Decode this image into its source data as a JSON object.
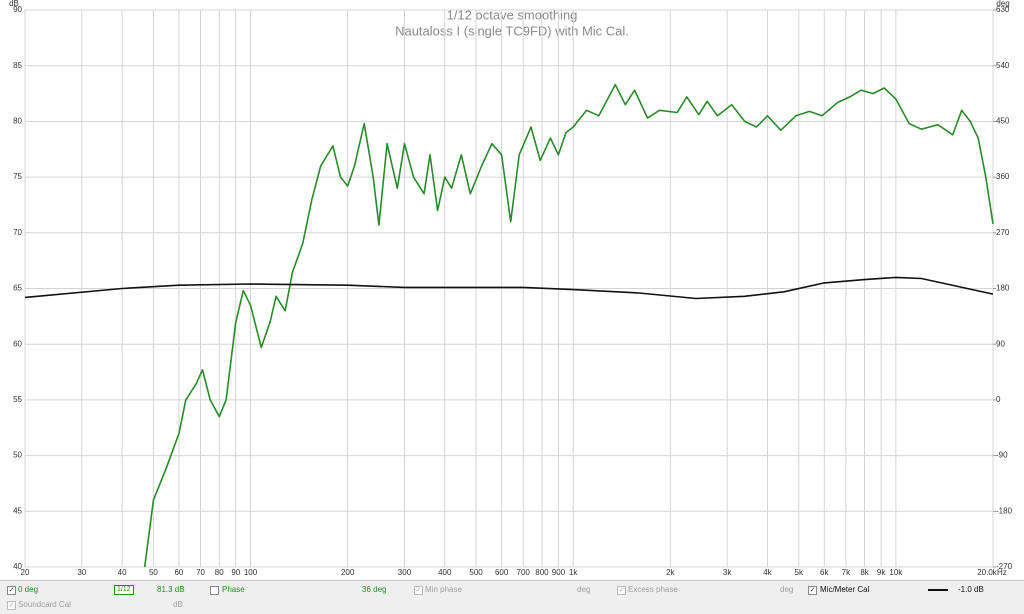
{
  "chart_data": {
    "type": "line",
    "title": "1/12 octave smoothing",
    "subtitle": "Nautaloss I (single TC9FD) with Mic Cal.",
    "ylabel": "dB",
    "y2label": "deg",
    "xunit": "Hz",
    "log_x": true,
    "grid": true,
    "xlim": [
      20,
      20000
    ],
    "ylim": [
      40,
      90
    ],
    "y2lim": [
      -270,
      630
    ],
    "xticks": [
      20,
      30,
      40,
      50,
      60,
      70,
      80,
      90,
      100,
      200,
      300,
      400,
      500,
      600,
      700,
      800,
      900,
      {
        "value": 1000,
        "label": "1k"
      },
      {
        "value": 2000,
        "label": "2k"
      },
      {
        "value": 3000,
        "label": "3k"
      },
      {
        "value": 4000,
        "label": "4k"
      },
      {
        "value": 5000,
        "label": "5k"
      },
      {
        "value": 6000,
        "label": "6k"
      },
      {
        "value": 7000,
        "label": "7k"
      },
      {
        "value": 8000,
        "label": "8k"
      },
      {
        "value": 9000,
        "label": "9k"
      },
      {
        "value": 10000,
        "label": "10k"
      },
      {
        "value": 20000,
        "label": "20.0k"
      }
    ],
    "yticks": [
      40,
      45,
      50,
      55,
      60,
      65,
      70,
      75,
      80,
      85,
      90
    ],
    "y2ticks": [
      -270,
      -180,
      -90,
      0,
      90,
      180,
      270,
      360,
      450,
      540,
      630
    ],
    "series": [
      {
        "name": "0 deg",
        "color": "#2a8a2a",
        "x": [
          47,
          50,
          55,
          60,
          63,
          68,
          71,
          75,
          80,
          84,
          90,
          95,
          100,
          108,
          115,
          120,
          128,
          135,
          145,
          155,
          165,
          180,
          190,
          200,
          210,
          225,
          240,
          250,
          265,
          285,
          300,
          320,
          345,
          360,
          380,
          400,
          420,
          450,
          480,
          520,
          560,
          600,
          640,
          680,
          740,
          790,
          850,
          900,
          950,
          1000,
          1100,
          1200,
          1350,
          1450,
          1550,
          1700,
          1850,
          2100,
          2250,
          2450,
          2600,
          2800,
          3100,
          3400,
          3700,
          4000,
          4400,
          4900,
          5400,
          5900,
          6600,
          7200,
          7800,
          8500,
          9200,
          10000,
          11000,
          12000,
          13500,
          15000,
          16000,
          17000,
          18000,
          19000,
          20000
        ],
        "values": [
          40,
          46,
          49,
          52,
          55,
          56.5,
          57.7,
          55,
          53.5,
          55,
          62,
          64.8,
          63.5,
          59.7,
          62,
          64.3,
          63,
          66.5,
          69,
          73,
          76,
          77.8,
          75,
          74.2,
          76,
          79.8,
          75,
          70.7,
          78,
          74,
          78,
          75,
          73.5,
          77,
          72,
          75,
          74,
          77,
          73.5,
          76,
          78,
          77,
          71,
          77,
          79.5,
          76.5,
          78.5,
          77,
          79,
          79.5,
          81,
          80.5,
          83.3,
          81.5,
          82.8,
          80.3,
          81,
          80.8,
          82.2,
          80.6,
          81.8,
          80.5,
          81.5,
          80,
          79.5,
          80.5,
          79.2,
          80.5,
          80.9,
          80.5,
          81.7,
          82.2,
          82.8,
          82.5,
          83,
          82,
          79.8,
          79.3,
          79.7,
          78.8,
          81,
          80,
          78.5,
          75,
          70.8
        ]
      },
      {
        "name": "Mic/Meter Cal",
        "color": "#111111",
        "x": [
          20,
          40,
          60,
          100,
          200,
          300,
          700,
          1000,
          1600,
          2400,
          3400,
          4500,
          6000,
          8000,
          10000,
          12000,
          20000
        ],
        "values": [
          64.2,
          65,
          65.3,
          65.4,
          65.3,
          65.1,
          65.1,
          64.9,
          64.6,
          64.1,
          64.3,
          64.7,
          65.5,
          65.8,
          66,
          65.9,
          64.5
        ]
      }
    ]
  },
  "panel": {
    "series0": {
      "checked": true,
      "label": "0 deg",
      "smoothing": "1/12",
      "value": "81.3 dB"
    },
    "phase": {
      "checked": false,
      "label": "Phase",
      "value": "36 deg"
    },
    "min_phase": {
      "checked": true,
      "label": "Min phase",
      "value": "deg"
    },
    "excess_phase": {
      "checked": true,
      "label": "Excess phase",
      "value": "deg"
    },
    "mic_cal": {
      "checked": true,
      "label": "Mic/Meter Cal",
      "value": "-1.0 dB"
    },
    "soundcard_cal": {
      "checked": true,
      "label": "Soundcard Cal",
      "value": "dB"
    }
  }
}
